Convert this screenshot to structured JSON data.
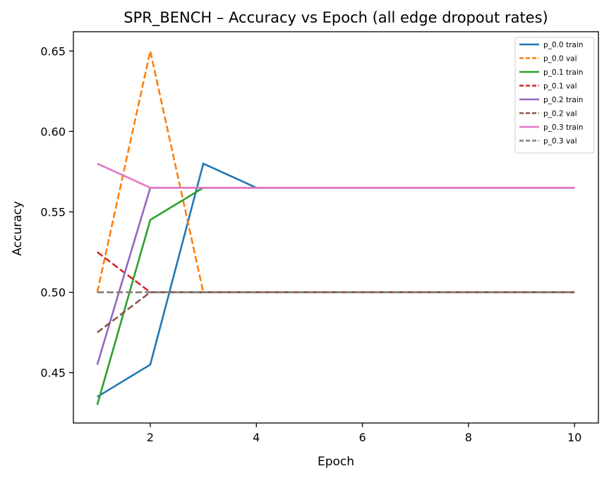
{
  "chart_data": {
    "type": "line",
    "title": "SPR_BENCH – Accuracy vs Epoch (all edge dropout rates)",
    "xlabel": "Epoch",
    "ylabel": "Accuracy",
    "xlim": [
      0.55,
      10.45
    ],
    "ylim": [
      0.4187,
      0.662
    ],
    "xticks": [
      2,
      4,
      6,
      8,
      10
    ],
    "yticks": [
      0.45,
      0.5,
      0.55,
      0.6,
      0.65
    ],
    "ytick_labels": [
      "0.45",
      "0.50",
      "0.55",
      "0.60",
      "0.65"
    ],
    "grid": false,
    "legend_position": "top-right",
    "x": [
      1,
      2,
      3,
      4,
      5,
      6,
      7,
      8,
      9,
      10
    ],
    "series": [
      {
        "name": "p_0.0 train",
        "color": "#1f77b4",
        "dash": "solid",
        "values": [
          0.435,
          0.455,
          0.58,
          0.565,
          0.565,
          0.565,
          0.565,
          0.565,
          0.565,
          0.565
        ]
      },
      {
        "name": "p_0.0 val",
        "color": "#ff7f0e",
        "dash": "dashed",
        "values": [
          0.5,
          0.65,
          0.5,
          0.5,
          0.5,
          0.5,
          0.5,
          0.5,
          0.5,
          0.5
        ]
      },
      {
        "name": "p_0.1 train",
        "color": "#2ca02c",
        "dash": "solid",
        "values": [
          0.43,
          0.545,
          0.565,
          0.565,
          0.565,
          0.565,
          0.565,
          0.565,
          0.565,
          0.565
        ]
      },
      {
        "name": "p_0.1 val",
        "color": "#d62728",
        "dash": "dashed",
        "values": [
          0.525,
          0.5,
          0.5,
          0.5,
          0.5,
          0.5,
          0.5,
          0.5,
          0.5,
          0.5
        ]
      },
      {
        "name": "p_0.2 train",
        "color": "#9467bd",
        "dash": "solid",
        "values": [
          0.455,
          0.565,
          0.565,
          0.565,
          0.565,
          0.565,
          0.565,
          0.565,
          0.565,
          0.565
        ]
      },
      {
        "name": "p_0.2 val",
        "color": "#8c564b",
        "dash": "dashed",
        "values": [
          0.475,
          0.5,
          0.5,
          0.5,
          0.5,
          0.5,
          0.5,
          0.5,
          0.5,
          0.5
        ]
      },
      {
        "name": "p_0.3 train",
        "color": "#e377c2",
        "dash": "solid",
        "values": [
          0.58,
          0.565,
          0.565,
          0.565,
          0.565,
          0.565,
          0.565,
          0.565,
          0.565,
          0.565
        ]
      },
      {
        "name": "p_0.3 val",
        "color": "#7f7f7f",
        "dash": "dashed",
        "values": [
          0.5,
          0.5,
          0.5,
          0.5,
          0.5,
          0.5,
          0.5,
          0.5,
          0.5,
          0.5
        ]
      }
    ]
  }
}
